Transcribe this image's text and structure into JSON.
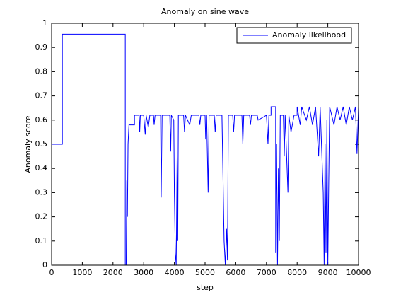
{
  "chart_data": {
    "type": "line",
    "title": "Anomaly on sine wave",
    "xlabel": "step",
    "ylabel": "Anomaly score",
    "xlim": [
      0,
      10000
    ],
    "ylim": [
      0,
      1
    ],
    "xticks": [
      0,
      1000,
      2000,
      3000,
      4000,
      5000,
      6000,
      7000,
      8000,
      9000,
      10000
    ],
    "yticks": [
      0,
      0.1,
      0.2,
      0.3,
      0.4,
      0.5,
      0.6,
      0.7,
      0.8,
      0.9,
      1
    ],
    "legend": "northeast",
    "grid": false,
    "series": [
      {
        "name": "Anomaly likelihood",
        "color": "#0000ff",
        "x": [
          0,
          350,
          350,
          2400,
          2400,
          2430,
          2450,
          2470,
          2490,
          2520,
          2700,
          2700,
          2850,
          2870,
          2890,
          3000,
          3050,
          3080,
          3150,
          3200,
          3320,
          3340,
          3370,
          3550,
          3570,
          3600,
          3850,
          3880,
          3900,
          3980,
          4000,
          4030,
          4060,
          4090,
          4110,
          4130,
          4300,
          4330,
          4360,
          4500,
          4550,
          4800,
          4830,
          4860,
          5000,
          5020,
          5050,
          5100,
          5130,
          5300,
          5330,
          5360,
          5550,
          5580,
          5620,
          5660,
          5700,
          5730,
          5760,
          5900,
          5930,
          5960,
          6200,
          6230,
          6260,
          6450,
          6480,
          6510,
          6700,
          6730,
          7000,
          7050,
          7080,
          7150,
          7150,
          7300,
          7300,
          7330,
          7360,
          7390,
          7420,
          7450,
          7550,
          7580,
          7610,
          7700,
          7730,
          7800,
          7900,
          8000,
          8000,
          8100,
          8150,
          8300,
          8400,
          8500,
          8600,
          8700,
          8750,
          8850,
          8880,
          8910,
          8940,
          8970,
          9000,
          9030,
          9060,
          9200,
          9300,
          9400,
          9500,
          9600,
          9700,
          9800,
          9900,
          9950,
          10000
        ],
        "values": [
          0.5,
          0.5,
          0.955,
          0.955,
          0,
          0,
          0.35,
          0.2,
          0.5,
          0.58,
          0.58,
          0.62,
          0.62,
          0.55,
          0.62,
          0.62,
          0.54,
          0.62,
          0.57,
          0.62,
          0.62,
          0.58,
          0.62,
          0.62,
          0.28,
          0.62,
          0.62,
          0.47,
          0.62,
          0.6,
          0.3,
          0.05,
          0,
          0.45,
          0.1,
          0.62,
          0.62,
          0.55,
          0.62,
          0.58,
          0.62,
          0.62,
          0.58,
          0.62,
          0.62,
          0.52,
          0.62,
          0.3,
          0.62,
          0.62,
          0.55,
          0.62,
          0.62,
          0.4,
          0.1,
          0,
          0.15,
          0.02,
          0.62,
          0.62,
          0.55,
          0.62,
          0.62,
          0.5,
          0.62,
          0.62,
          0.58,
          0.62,
          0.62,
          0.6,
          0.62,
          0.5,
          0.62,
          0.62,
          0.655,
          0.655,
          0.05,
          0.5,
          0,
          0.4,
          0.1,
          0.62,
          0.62,
          0.45,
          0.62,
          0.3,
          0.62,
          0.55,
          0.62,
          0.62,
          0.655,
          0.58,
          0.655,
          0.6,
          0.655,
          0.58,
          0.655,
          0.45,
          0.655,
          0.3,
          0,
          0.5,
          0.05,
          0.6,
          0,
          0.35,
          0.655,
          0.58,
          0.655,
          0.6,
          0.655,
          0.58,
          0.655,
          0.6,
          0.655,
          0.46,
          0.655
        ]
      }
    ]
  }
}
